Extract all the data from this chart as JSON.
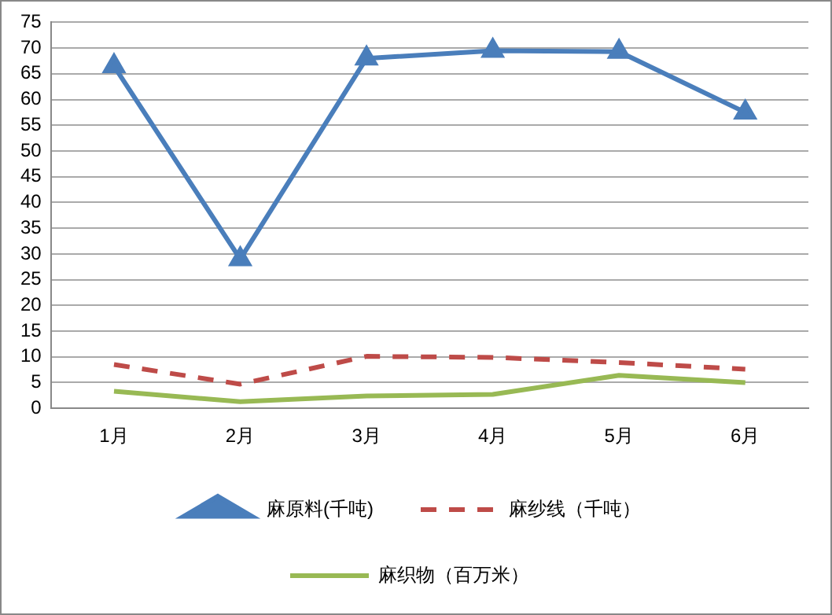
{
  "chart_data": {
    "type": "line",
    "categories": [
      "1月",
      "2月",
      "3月",
      "4月",
      "5月",
      "6月"
    ],
    "series": [
      {
        "name": "麻原料(千吨)",
        "color": "#4a7ebb",
        "marker": "triangle",
        "line_style": "solid",
        "values": [
          66.5,
          29,
          68,
          69.5,
          69.3,
          57.5
        ]
      },
      {
        "name": "麻纱线（千吨）",
        "color": "#be4b48",
        "marker": "none",
        "line_style": "dashed",
        "values": [
          8.5,
          4.7,
          10.1,
          9.9,
          8.9,
          7.6
        ]
      },
      {
        "name": "麻织物（百万米）",
        "color": "#98b954",
        "marker": "none",
        "line_style": "solid",
        "values": [
          3.3,
          1.3,
          2.4,
          2.7,
          6.4,
          5
        ]
      }
    ],
    "ylim": [
      0,
      75
    ],
    "yticks": [
      0,
      5,
      10,
      15,
      20,
      25,
      30,
      35,
      40,
      45,
      50,
      55,
      60,
      65,
      70,
      75
    ],
    "grid": "y",
    "legend": "bottom"
  }
}
